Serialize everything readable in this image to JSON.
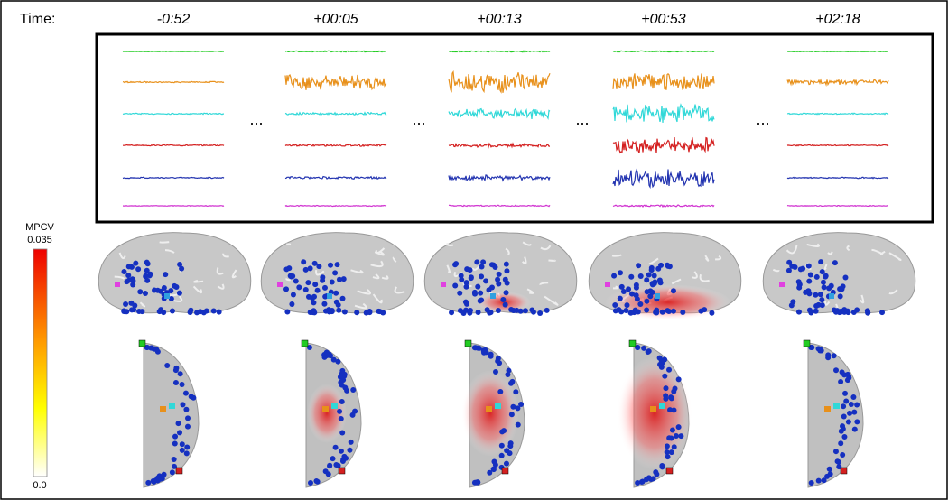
{
  "header": {
    "label": "Time:",
    "times": [
      "-0:52",
      "+00:05",
      "+00:13",
      "+00:53",
      "+02:18"
    ]
  },
  "separators": [
    "...",
    "...",
    "...",
    "..."
  ],
  "colorbar": {
    "title": "MPCV",
    "max": "0.035",
    "min": "0.0"
  }
}
